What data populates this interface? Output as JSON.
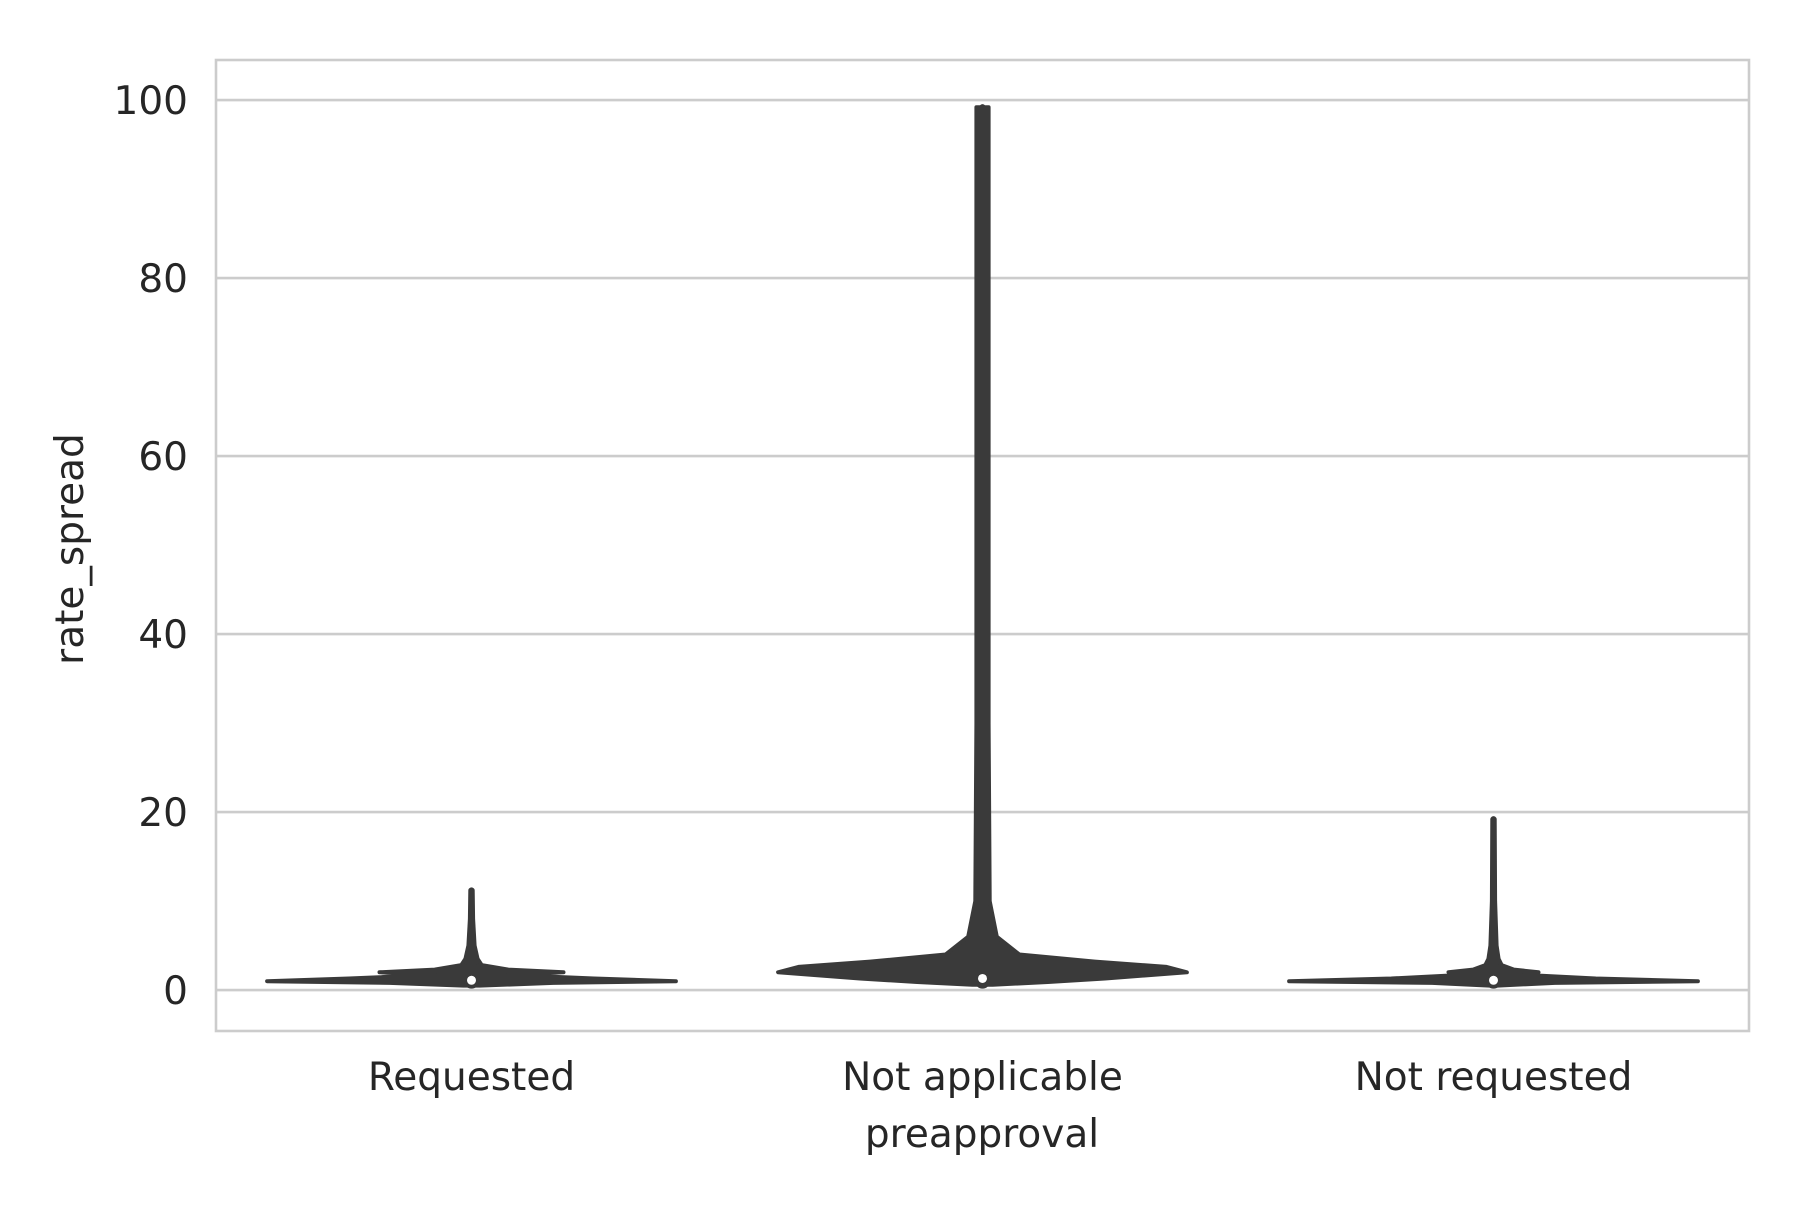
{
  "chart_data": {
    "type": "violin",
    "xlabel": "preapproval",
    "ylabel": "rate_spread",
    "categories": [
      "Requested",
      "Not applicable",
      "Not requested"
    ],
    "y_ticks": [
      0,
      20,
      40,
      60,
      80,
      100
    ],
    "ylim": [
      -4.6,
      104.5
    ],
    "grid": true,
    "series": [
      {
        "category": "Requested",
        "min": 0.8,
        "q1": 1.0,
        "median": 1.1,
        "q3": 2.2,
        "max": 11.2,
        "density": [
          [
            0.5,
            0.04
          ],
          [
            0.8,
            0.4
          ],
          [
            1.0,
            1.0
          ],
          [
            1.3,
            0.6
          ],
          [
            1.7,
            0.18
          ],
          [
            2.0,
            0.45
          ],
          [
            2.3,
            0.18
          ],
          [
            2.8,
            0.05
          ],
          [
            3.5,
            0.03
          ],
          [
            5,
            0.015
          ],
          [
            8,
            0.008
          ],
          [
            11.2,
            0.006
          ]
        ]
      },
      {
        "category": "Not applicable",
        "min": 0.7,
        "q1": 1.0,
        "median": 1.3,
        "q3": 2.6,
        "max": 99.2,
        "density": [
          [
            0.6,
            0.05
          ],
          [
            0.9,
            0.32
          ],
          [
            1.3,
            0.6
          ],
          [
            2.0,
            1.0
          ],
          [
            2.6,
            0.9
          ],
          [
            3.2,
            0.55
          ],
          [
            4,
            0.18
          ],
          [
            6,
            0.07
          ],
          [
            10,
            0.035
          ],
          [
            30,
            0.03
          ],
          [
            99.2,
            0.03
          ]
        ]
      },
      {
        "category": "Not requested",
        "min": 0.8,
        "q1": 1.0,
        "median": 1.1,
        "q3": 2.2,
        "max": 19.2,
        "density": [
          [
            0.5,
            0.02
          ],
          [
            0.8,
            0.3
          ],
          [
            1.0,
            1.0
          ],
          [
            1.3,
            0.5
          ],
          [
            1.7,
            0.15
          ],
          [
            2.0,
            0.22
          ],
          [
            2.3,
            0.1
          ],
          [
            2.8,
            0.04
          ],
          [
            3.5,
            0.025
          ],
          [
            5,
            0.015
          ],
          [
            10,
            0.008
          ],
          [
            19.2,
            0.006
          ]
        ]
      }
    ]
  }
}
